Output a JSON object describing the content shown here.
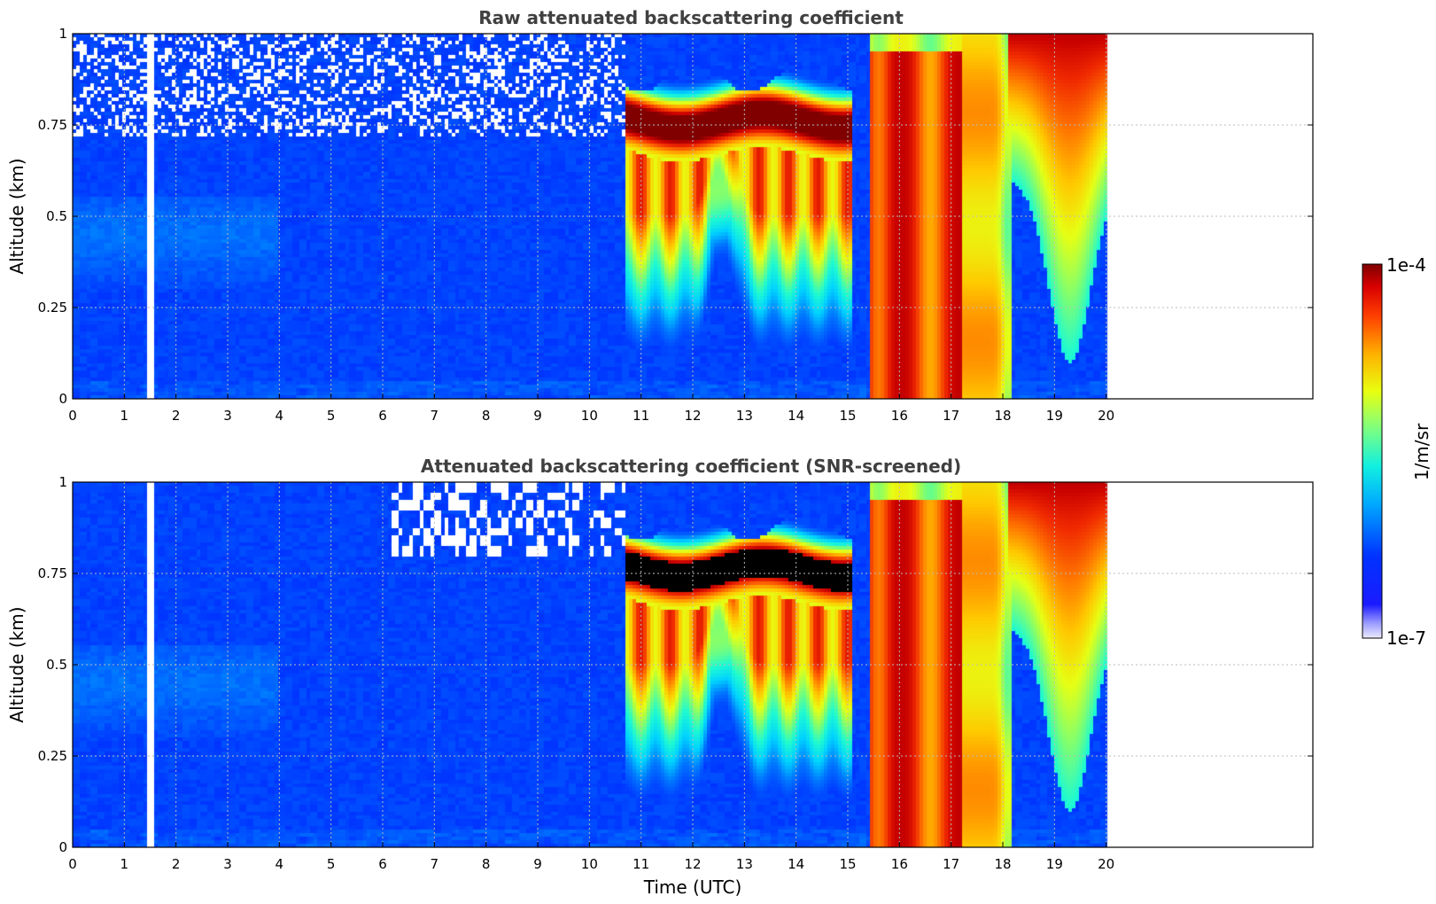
{
  "chart_data": [
    {
      "type": "heatmap",
      "title": "Raw attenuated backscattering coefficient",
      "xlabel": "",
      "ylabel": "Altitude (km)",
      "xlim": [
        0,
        24
      ],
      "ylim": [
        0,
        1
      ],
      "xticks": [
        "0",
        "1",
        "2",
        "3",
        "4",
        "5",
        "6",
        "7",
        "8",
        "9",
        "10",
        "11",
        "12",
        "13",
        "14",
        "15",
        "16",
        "17",
        "18",
        "19",
        "20"
      ],
      "yticks": [
        "0",
        "0.25",
        "0.5",
        "0.75",
        "1"
      ],
      "grid": true,
      "data_end_hour": 20,
      "gap_hour": 1.5,
      "screened": false
    },
    {
      "type": "heatmap",
      "title": "Attenuated backscattering coefficient (SNR-screened)",
      "xlabel": "Time (UTC)",
      "ylabel": "Altitude (km)",
      "xlim": [
        0,
        24
      ],
      "ylim": [
        0,
        1
      ],
      "xticks": [
        "0",
        "1",
        "2",
        "3",
        "4",
        "5",
        "6",
        "7",
        "8",
        "9",
        "10",
        "11",
        "12",
        "13",
        "14",
        "15",
        "16",
        "17",
        "18",
        "19",
        "20"
      ],
      "yticks": [
        "0",
        "0.25",
        "0.5",
        "0.75",
        "1"
      ],
      "grid": true,
      "data_end_hour": 20,
      "gap_hour": 1.5,
      "screened": true
    }
  ],
  "colorbar": {
    "label": "1/m/sr",
    "max_label": "1e-4",
    "min_label": "1e-7",
    "scale": "log",
    "colormap": "jet"
  }
}
